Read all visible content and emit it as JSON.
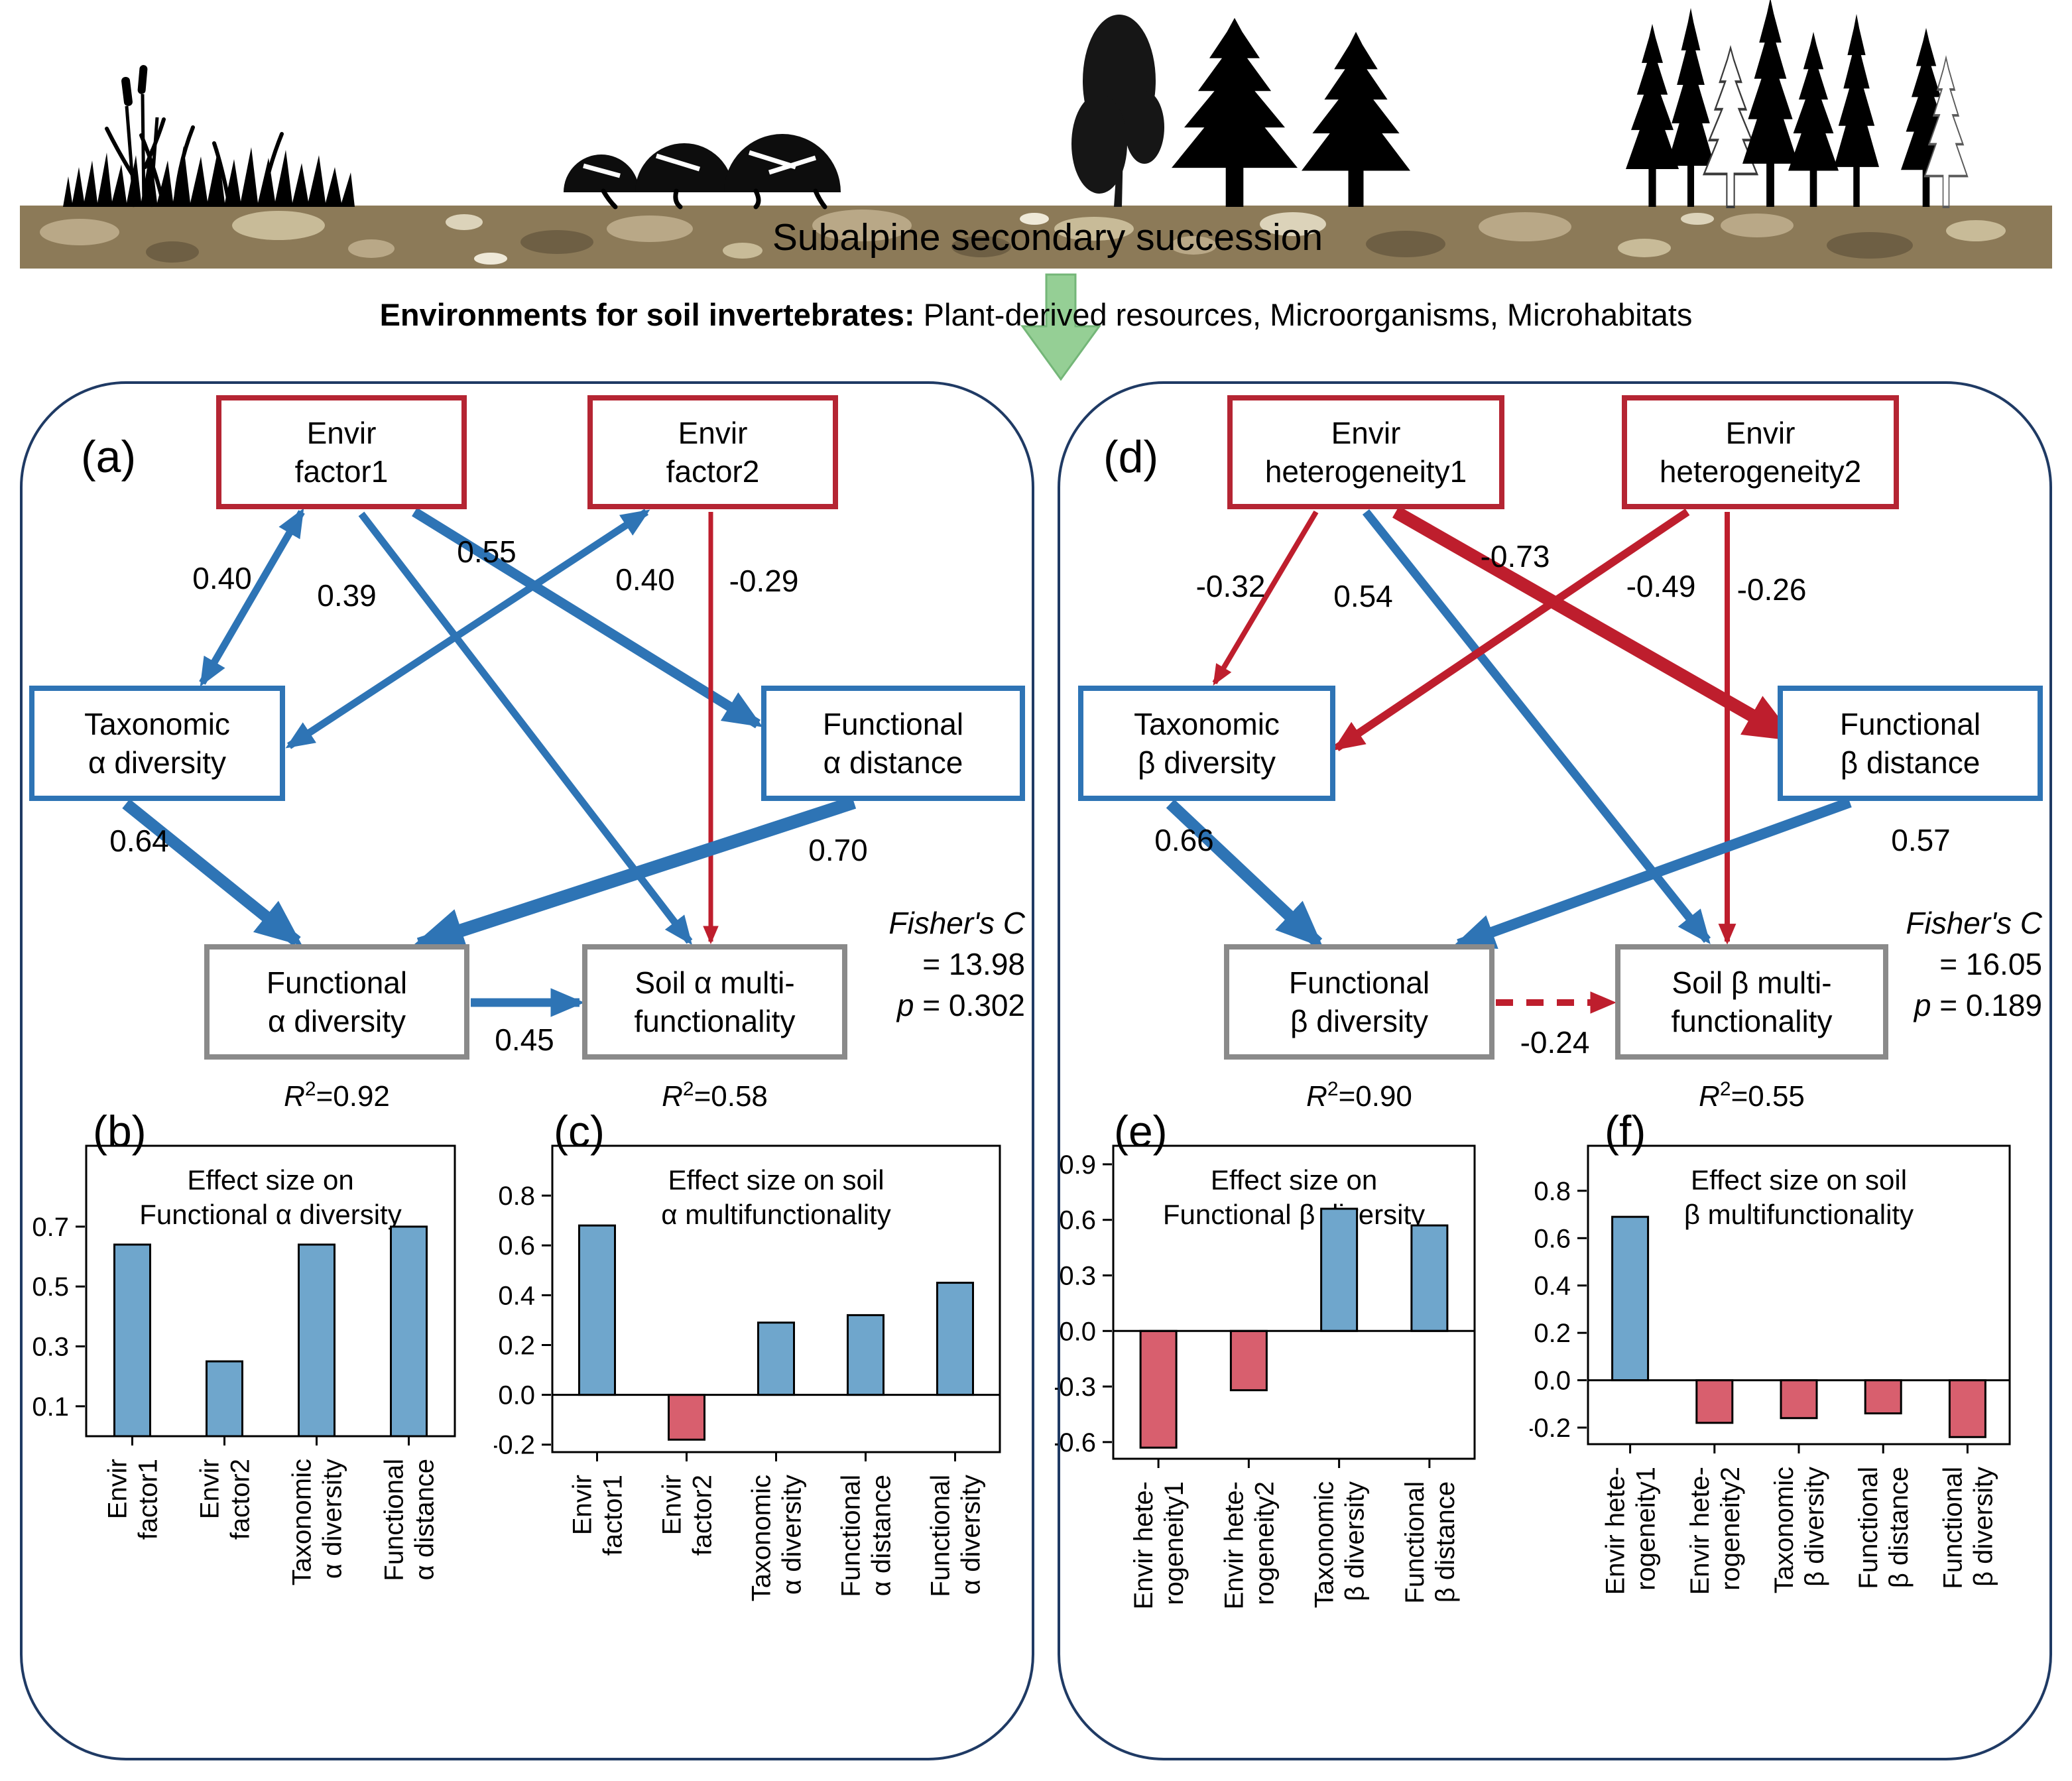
{
  "header": {
    "band_title": "Subalpine secondary succession",
    "caption_bold": "Environments for soil invertebrates:",
    "caption_rest": " Plant-derived resources, Microorganisms, Microhabitats"
  },
  "icons": {
    "grass": "grass-icon",
    "shrub": "shrub-icon",
    "deciduous_tree": "deciduous-tree-icon",
    "conifer": "conifer-tree-icon",
    "forest": "conifer-forest-icon",
    "succession_arrow": "green-down-arrow-icon"
  },
  "colors": {
    "sem_blue": "#2E74B5",
    "sem_red": "#BE1E2D",
    "box_red_border": "#B52533",
    "box_gray_border": "#8A8A8A",
    "panel_border": "#1F3A64",
    "bar_blue": "#6FA6CC",
    "bar_red": "#D85F6E",
    "soil_brown": "#8C7A58",
    "soil_patch": "#BCAB89",
    "green_arrow": "#95CF95"
  },
  "panel_letters": {
    "a": "(a)",
    "b": "(b)",
    "c": "(c)",
    "d": "(d)",
    "e": "(e)",
    "f": "(f)"
  },
  "sem_a": {
    "boxes": {
      "factor1": {
        "l1": "Envir",
        "l2": "factor1"
      },
      "factor2": {
        "l1": "Envir",
        "l2": "factor2"
      },
      "tax": {
        "l1": "Taxonomic",
        "l2": "α diversity"
      },
      "dist": {
        "l1": "Functional",
        "l2": "α distance"
      },
      "fdiv": {
        "l1": "Functional",
        "l2": "α diversity"
      },
      "soil": {
        "l1": "Soil α multi-",
        "l2": "functionality"
      }
    },
    "coefs": {
      "f1_tax": "0.40",
      "f1_soil": "0.39",
      "f1_dist": "0.55",
      "f2_tax": "0.40",
      "f2_soil": "-0.29",
      "tax_fdiv": "0.64",
      "dist_fdiv": "0.70",
      "fdiv_soil": "0.45"
    },
    "r2_fdiv": {
      "it": "R",
      "sup": "2",
      "rest": "=0.92"
    },
    "r2_soil": {
      "it": "R",
      "sup": "2",
      "rest": "=0.58"
    },
    "fisher": {
      "l1": "Fisher's C",
      "l2": "= 13.98",
      "p": "p",
      "pv": " = 0.302"
    }
  },
  "sem_d": {
    "boxes": {
      "het1": {
        "l1": "Envir",
        "l2": "heterogeneity1"
      },
      "het2": {
        "l1": "Envir",
        "l2": "heterogeneity2"
      },
      "tax": {
        "l1": "Taxonomic",
        "l2": "β diversity"
      },
      "dist": {
        "l1": "Functional",
        "l2": "β distance"
      },
      "fdiv": {
        "l1": "Functional",
        "l2": "β diversity"
      },
      "soil": {
        "l1": "Soil β multi-",
        "l2": "functionality"
      }
    },
    "coefs": {
      "h1_tax": "-0.32",
      "h1_soil": "0.54",
      "h1_dist": "-0.73",
      "h2_tax": "-0.49",
      "h2_soil": "-0.26",
      "tax_fdiv": "0.66",
      "dist_fdiv": "0.57",
      "fdiv_soil": "-0.24"
    },
    "r2_fdiv": {
      "it": "R",
      "sup": "2",
      "rest": "=0.90"
    },
    "r2_soil": {
      "it": "R",
      "sup": "2",
      "rest": "=0.55"
    },
    "fisher": {
      "l1": "Fisher's C",
      "l2": "= 16.05",
      "p": "p",
      "pv": " = 0.189"
    }
  },
  "chart_data": [
    {
      "id": "b",
      "type": "bar",
      "title": [
        "Effect size on",
        "Functional α diversity"
      ],
      "categories": [
        [
          "Envir",
          "factor1"
        ],
        [
          "Envir",
          "factor2"
        ],
        [
          "Taxonomic",
          "α diversity"
        ],
        [
          "Functional",
          "α distance"
        ]
      ],
      "values": [
        0.64,
        0.25,
        0.64,
        0.7
      ],
      "ylim": [
        0,
        0.97
      ],
      "yticks": [
        "0.7",
        "0.5",
        "0.3",
        "0.1"
      ],
      "grid": false,
      "legend": "none"
    },
    {
      "id": "c",
      "type": "bar",
      "title": [
        "Effect size on soil",
        "α multifunctionality"
      ],
      "categories": [
        [
          "Envir",
          "factor1"
        ],
        [
          "Envir",
          "factor2"
        ],
        [
          "Taxonomic",
          "α diversity"
        ],
        [
          "Functional",
          "α distance"
        ],
        [
          "Functional",
          "α diversity"
        ]
      ],
      "values": [
        0.68,
        -0.18,
        0.29,
        0.32,
        0.45
      ],
      "ylim": [
        -0.23,
        1.0
      ],
      "yticks": [
        "0.8",
        "0.6",
        "0.4",
        "0.2",
        "0.0",
        "-0.2"
      ],
      "grid": false,
      "legend": "none"
    },
    {
      "id": "e",
      "type": "bar",
      "title": [
        "Effect size on",
        "Functional β diversity"
      ],
      "categories": [
        [
          "Envir hete-",
          "rogeneity1"
        ],
        [
          "Envir hete-",
          "rogeneity2"
        ],
        [
          "Taxonomic",
          "β diversity"
        ],
        [
          "Functional",
          "β distance"
        ]
      ],
      "values": [
        -0.63,
        -0.32,
        0.66,
        0.57
      ],
      "ylim": [
        -0.69,
        1.0
      ],
      "yticks": [
        "0.9",
        "0.6",
        "0.3",
        "0.0",
        "-0.3",
        "-0.6"
      ],
      "grid": false,
      "legend": "none"
    },
    {
      "id": "f",
      "type": "bar",
      "title": [
        "Effect size on soil",
        "β multifunctionality"
      ],
      "categories": [
        [
          "Envir hete-",
          "rogeneity1"
        ],
        [
          "Envir hete-",
          "rogeneity2"
        ],
        [
          "Taxonomic",
          "β diversity"
        ],
        [
          "Functional",
          "β distance"
        ],
        [
          "Functional",
          "β diversity"
        ]
      ],
      "values": [
        0.69,
        -0.18,
        -0.16,
        -0.14,
        -0.24
      ],
      "ylim": [
        -0.27,
        0.99
      ],
      "yticks": [
        "0.8",
        "0.6",
        "0.4",
        "0.2",
        "0.0",
        "-0.2"
      ],
      "grid": false,
      "legend": "none"
    }
  ]
}
